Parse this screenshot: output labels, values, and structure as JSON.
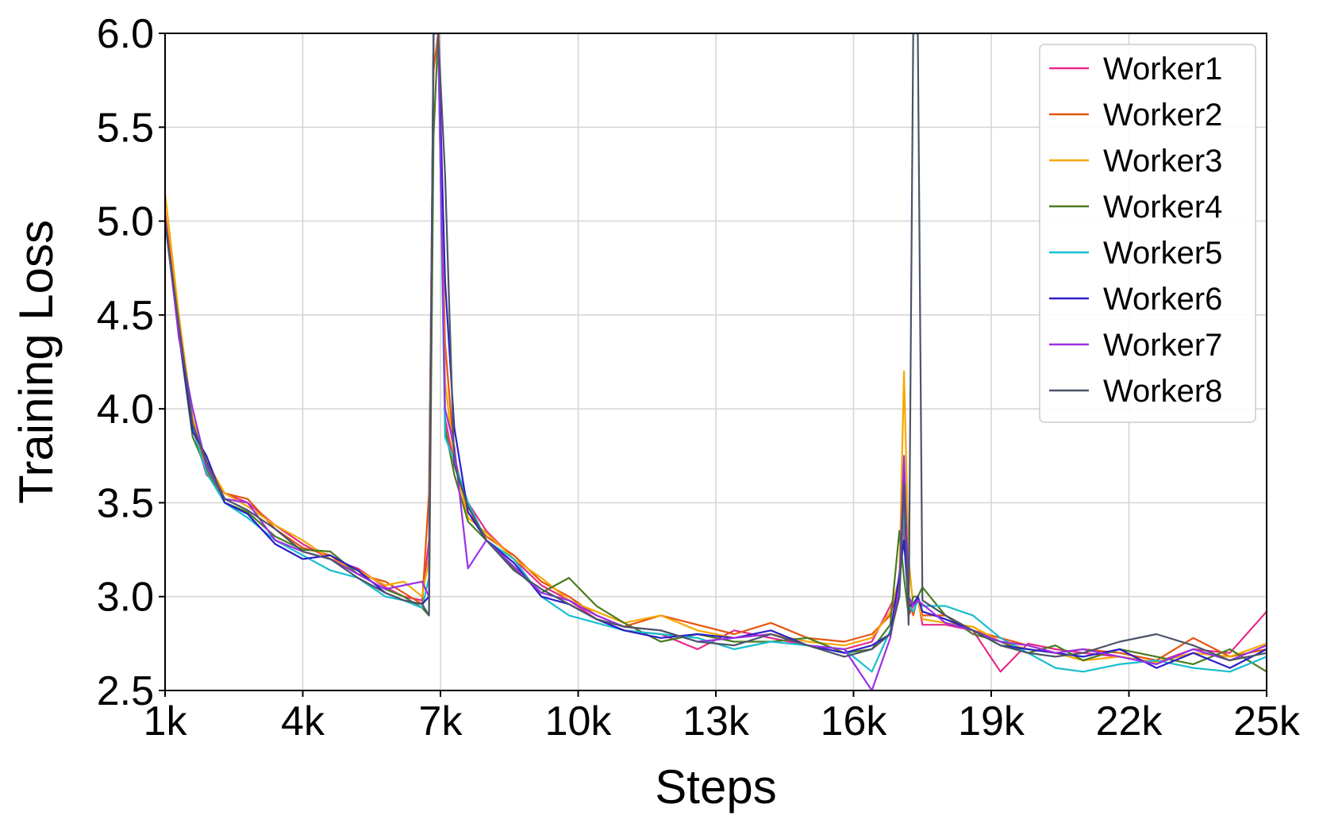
{
  "chart_data": {
    "type": "line",
    "title": "",
    "xlabel": "Steps",
    "ylabel": "Training Loss",
    "xlim": [
      1000,
      25000
    ],
    "ylim": [
      2.5,
      6.0
    ],
    "xticks": [
      1000,
      4000,
      7000,
      10000,
      13000,
      16000,
      19000,
      22000,
      25000
    ],
    "xtick_labels": [
      "1k",
      "4k",
      "7k",
      "10k",
      "13k",
      "16k",
      "19k",
      "22k",
      "25k"
    ],
    "yticks": [
      2.5,
      3.0,
      3.5,
      4.0,
      4.5,
      5.0,
      5.5,
      6.0
    ],
    "ytick_labels": [
      "2.5",
      "3.0",
      "3.5",
      "4.0",
      "4.5",
      "5.0",
      "5.5",
      "6.0"
    ],
    "grid": true,
    "legend": "top-right",
    "series": [
      {
        "name": "Worker1",
        "color": "#e7298a",
        "x": [
          1000,
          1300,
          1600,
          1900,
          2300,
          2800,
          3400,
          4000,
          4600,
          5200,
          5800,
          6200,
          6600,
          6750,
          6850,
          6950,
          7100,
          7300,
          7600,
          8000,
          8600,
          9200,
          9800,
          10400,
          11000,
          11800,
          12600,
          13400,
          14200,
          15000,
          15800,
          16400,
          16800,
          17000,
          17100,
          17200,
          17300,
          17400,
          17500,
          18000,
          18600,
          19200,
          19800,
          20400,
          21000,
          21800,
          22600,
          23400,
          24200,
          25000
        ],
        "y": [
          5.0,
          4.5,
          3.9,
          3.65,
          3.55,
          3.5,
          3.38,
          3.28,
          3.2,
          3.15,
          3.05,
          3.0,
          2.98,
          3.3,
          6.0,
          6.2,
          3.95,
          3.7,
          3.5,
          3.35,
          3.2,
          3.06,
          2.98,
          2.88,
          2.82,
          2.8,
          2.72,
          2.82,
          2.78,
          2.74,
          2.72,
          2.76,
          2.95,
          3.05,
          3.4,
          2.9,
          2.95,
          3.0,
          2.85,
          2.85,
          2.82,
          2.6,
          2.75,
          2.72,
          2.7,
          2.68,
          2.65,
          2.72,
          2.7,
          2.92
        ]
      },
      {
        "name": "Worker2",
        "color": "#e6550d",
        "x": [
          1000,
          1300,
          1600,
          1900,
          2300,
          2800,
          3400,
          4000,
          4600,
          5200,
          5800,
          6200,
          6600,
          6750,
          6850,
          6950,
          7100,
          7300,
          7600,
          8000,
          8600,
          9200,
          9800,
          10400,
          11000,
          11800,
          12600,
          13400,
          14200,
          15000,
          15800,
          16400,
          16800,
          17000,
          17100,
          17200,
          17300,
          17400,
          17500,
          18000,
          18600,
          19200,
          19800,
          20400,
          21000,
          21800,
          22600,
          23400,
          24200,
          25000
        ],
        "y": [
          5.05,
          4.45,
          3.9,
          3.7,
          3.55,
          3.52,
          3.36,
          3.26,
          3.22,
          3.12,
          3.08,
          3.02,
          2.96,
          3.55,
          5.8,
          6.0,
          4.35,
          3.75,
          3.45,
          3.32,
          3.22,
          3.08,
          3.0,
          2.9,
          2.84,
          2.9,
          2.85,
          2.8,
          2.86,
          2.78,
          2.76,
          2.8,
          2.9,
          3.08,
          3.65,
          3.0,
          2.9,
          3.0,
          2.9,
          2.9,
          2.82,
          2.78,
          2.74,
          2.7,
          2.72,
          2.7,
          2.66,
          2.78,
          2.68,
          2.72
        ]
      },
      {
        "name": "Worker3",
        "color": "#f5a800",
        "x": [
          1000,
          1300,
          1600,
          1900,
          2300,
          2800,
          3400,
          4000,
          4600,
          5200,
          5800,
          6200,
          6600,
          6750,
          6850,
          6950,
          7100,
          7300,
          7600,
          8000,
          8600,
          9200,
          9800,
          10400,
          11000,
          11800,
          12600,
          13400,
          14200,
          15000,
          15800,
          16400,
          16800,
          17000,
          17100,
          17200,
          17300,
          17400,
          17500,
          18000,
          18600,
          19200,
          19800,
          20400,
          21000,
          21800,
          22600,
          23400,
          24200,
          25000
        ],
        "y": [
          5.15,
          4.5,
          3.95,
          3.72,
          3.55,
          3.48,
          3.38,
          3.3,
          3.2,
          3.14,
          3.06,
          3.08,
          3.0,
          3.2,
          6.0,
          6.1,
          4.15,
          3.72,
          3.42,
          3.34,
          3.2,
          3.1,
          2.98,
          2.92,
          2.86,
          2.9,
          2.82,
          2.78,
          2.8,
          2.76,
          2.74,
          2.78,
          2.92,
          3.1,
          4.2,
          3.2,
          2.95,
          2.98,
          2.88,
          2.86,
          2.84,
          2.76,
          2.72,
          2.7,
          2.66,
          2.68,
          2.65,
          2.7,
          2.68,
          2.75
        ]
      },
      {
        "name": "Worker4",
        "color": "#4a7c1f",
        "x": [
          1000,
          1300,
          1600,
          1900,
          2300,
          2800,
          3400,
          4000,
          4600,
          5200,
          5800,
          6200,
          6600,
          6750,
          6850,
          6950,
          7100,
          7300,
          7600,
          8000,
          8600,
          9200,
          9800,
          10400,
          11000,
          11800,
          12600,
          13400,
          14200,
          15000,
          15800,
          16400,
          16800,
          17000,
          17100,
          17200,
          17300,
          17400,
          17500,
          18000,
          18600,
          19200,
          19800,
          20400,
          21000,
          21800,
          22600,
          23400,
          24200,
          25000
        ],
        "y": [
          5.0,
          4.4,
          3.85,
          3.68,
          3.5,
          3.45,
          3.32,
          3.25,
          3.24,
          3.12,
          3.04,
          3.0,
          2.94,
          2.9,
          5.45,
          6.0,
          3.9,
          3.65,
          3.4,
          3.3,
          3.15,
          3.02,
          3.1,
          2.95,
          2.86,
          2.76,
          2.8,
          2.76,
          2.76,
          2.78,
          2.7,
          2.72,
          2.85,
          3.35,
          3.1,
          2.9,
          3.0,
          3.0,
          3.05,
          2.9,
          2.8,
          2.76,
          2.7,
          2.74,
          2.66,
          2.72,
          2.68,
          2.64,
          2.72,
          2.6
        ]
      },
      {
        "name": "Worker5",
        "color": "#17becf",
        "x": [
          1000,
          1300,
          1600,
          1900,
          2300,
          2800,
          3400,
          4000,
          4600,
          5200,
          5800,
          6200,
          6600,
          6750,
          6850,
          6950,
          7100,
          7300,
          7600,
          8000,
          8600,
          9200,
          9800,
          10400,
          11000,
          11800,
          12600,
          13400,
          14200,
          15000,
          15800,
          16400,
          16800,
          17000,
          17100,
          17200,
          17300,
          17400,
          17500,
          18000,
          18600,
          19200,
          19800,
          20400,
          21000,
          21800,
          22600,
          23400,
          24200,
          25000
        ],
        "y": [
          5.0,
          4.42,
          3.9,
          3.66,
          3.5,
          3.42,
          3.3,
          3.22,
          3.14,
          3.1,
          3.0,
          2.98,
          2.94,
          3.1,
          6.0,
          6.0,
          3.85,
          3.72,
          3.5,
          3.3,
          3.2,
          3.0,
          2.9,
          2.86,
          2.82,
          2.8,
          2.78,
          2.72,
          2.76,
          2.74,
          2.72,
          2.6,
          2.82,
          3.0,
          3.5,
          2.95,
          2.92,
          2.98,
          2.95,
          2.95,
          2.9,
          2.78,
          2.7,
          2.62,
          2.6,
          2.64,
          2.66,
          2.62,
          2.6,
          2.68
        ]
      },
      {
        "name": "Worker6",
        "color": "#2c1fc8",
        "x": [
          1000,
          1300,
          1600,
          1900,
          2300,
          2800,
          3400,
          4000,
          4600,
          5200,
          5800,
          6200,
          6600,
          6750,
          6850,
          6950,
          7100,
          7300,
          7600,
          8000,
          8600,
          9200,
          9800,
          10400,
          11000,
          11800,
          12600,
          13400,
          14200,
          15000,
          15800,
          16400,
          16800,
          17000,
          17100,
          17200,
          17300,
          17400,
          17500,
          18000,
          18600,
          19200,
          19800,
          20400,
          21000,
          21800,
          22600,
          23400,
          24200,
          25000
        ],
        "y": [
          5.0,
          4.4,
          3.88,
          3.75,
          3.5,
          3.44,
          3.28,
          3.2,
          3.22,
          3.14,
          3.02,
          2.98,
          2.96,
          3.0,
          6.0,
          6.0,
          4.68,
          3.9,
          3.45,
          3.3,
          3.18,
          3.0,
          2.96,
          2.88,
          2.82,
          2.78,
          2.8,
          2.78,
          2.82,
          2.74,
          2.7,
          2.74,
          2.8,
          3.12,
          3.3,
          2.95,
          2.96,
          3.0,
          2.92,
          2.88,
          2.82,
          2.74,
          2.72,
          2.7,
          2.68,
          2.72,
          2.62,
          2.7,
          2.62,
          2.72
        ]
      },
      {
        "name": "Worker7",
        "color": "#9b30e8",
        "x": [
          1000,
          1300,
          1600,
          1900,
          2300,
          2800,
          3400,
          4000,
          4600,
          5200,
          5800,
          6200,
          6600,
          6750,
          6850,
          6950,
          7100,
          7300,
          7600,
          8000,
          8600,
          9200,
          9800,
          10400,
          11000,
          11800,
          12600,
          13400,
          14200,
          15000,
          15800,
          16400,
          16800,
          17000,
          17100,
          17200,
          17300,
          17400,
          17500,
          18000,
          18600,
          19200,
          19800,
          20400,
          21000,
          21800,
          22600,
          23400,
          24200,
          25000
        ],
        "y": [
          5.02,
          4.38,
          4.0,
          3.7,
          3.52,
          3.5,
          3.3,
          3.24,
          3.2,
          3.12,
          3.04,
          3.06,
          3.08,
          3.0,
          6.0,
          6.0,
          4.0,
          3.8,
          3.15,
          3.3,
          3.16,
          3.02,
          2.98,
          2.9,
          2.84,
          2.82,
          2.76,
          2.78,
          2.8,
          2.74,
          2.72,
          2.5,
          2.78,
          3.05,
          3.75,
          3.0,
          2.95,
          2.98,
          2.96,
          2.86,
          2.82,
          2.76,
          2.74,
          2.7,
          2.72,
          2.68,
          2.64,
          2.72,
          2.66,
          2.74
        ]
      },
      {
        "name": "Worker8",
        "color": "#4a5568",
        "x": [
          1000,
          1300,
          1600,
          1900,
          2300,
          2800,
          3400,
          4000,
          4600,
          5200,
          5800,
          6200,
          6600,
          6750,
          6850,
          6950,
          7100,
          7300,
          7600,
          8000,
          8600,
          9200,
          9800,
          10400,
          11000,
          11800,
          12600,
          13400,
          14200,
          15000,
          15800,
          16400,
          16800,
          17000,
          17100,
          17200,
          17300,
          17400,
          17500,
          18000,
          18600,
          19200,
          19800,
          20400,
          21000,
          21800,
          22600,
          23400,
          24200,
          25000
        ],
        "y": [
          5.0,
          4.45,
          3.92,
          3.72,
          3.52,
          3.46,
          3.36,
          3.24,
          3.2,
          3.1,
          3.02,
          2.98,
          2.96,
          2.9,
          6.0,
          6.0,
          5.25,
          3.7,
          3.48,
          3.3,
          3.14,
          3.04,
          2.96,
          2.88,
          2.84,
          2.82,
          2.76,
          2.74,
          2.8,
          2.74,
          2.68,
          2.72,
          2.8,
          3.0,
          3.6,
          2.85,
          6.0,
          6.0,
          2.98,
          2.9,
          2.82,
          2.74,
          2.7,
          2.68,
          2.7,
          2.76,
          2.8,
          2.74,
          2.66,
          2.7
        ]
      }
    ]
  }
}
